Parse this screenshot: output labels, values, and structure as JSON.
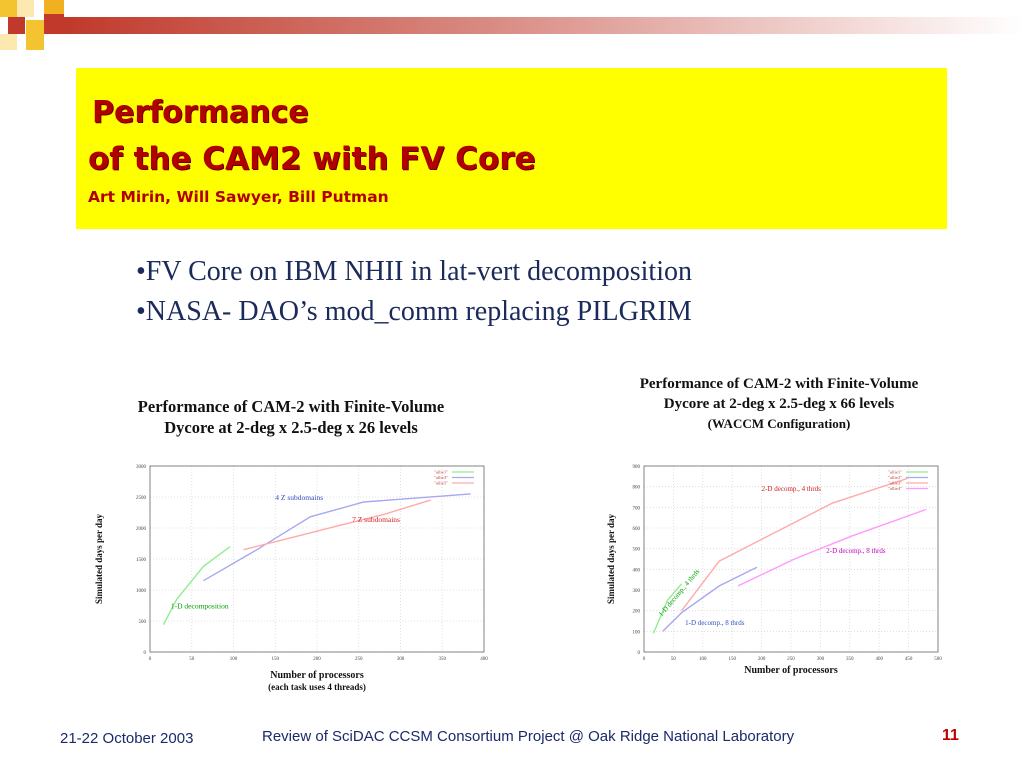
{
  "slide": {
    "title_line1": "Performance",
    "title_line2": "of the CAM2 with FV Core",
    "authors": "Art Mirin, Will Sawyer, Bill Putman",
    "bullets": [
      "•FV Core on IBM NHII in lat-vert decomposition",
      "•NASA- DAO’s mod_comm replacing PILGRIM"
    ],
    "footer": {
      "date": "21-22 October 2003",
      "center": "Review of SciDAC CCSM Consortium Project @ Oak Ridge National Laboratory",
      "page": "11"
    },
    "colors": {
      "title_box": "#ffff00",
      "title_text": "#b00000",
      "bullet_text": "#1a2a5a"
    }
  },
  "chart_data": [
    {
      "type": "line",
      "title_line1": "Performance of CAM-2 with Finite-Volume",
      "title_line2": "Dycore at 2-deg x 2.5-deg x 26 levels",
      "xlabel": "Number of processors",
      "xlabel_note": "(each task uses 4 threads)",
      "ylabel": "Simulated days per day",
      "xlim": [
        0,
        400
      ],
      "ylim": [
        0,
        3000
      ],
      "xticks": [
        0,
        50,
        100,
        150,
        200,
        250,
        300,
        350,
        400
      ],
      "yticks": [
        0,
        500,
        1000,
        1500,
        2000,
        2500,
        3000
      ],
      "grid": true,
      "legend_position": "top-right",
      "series": [
        {
          "name": "\"allie1\"",
          "color": "#90ee90",
          "x": [
            16,
            32,
            64,
            96
          ],
          "y": [
            440,
            850,
            1380,
            1700
          ]
        },
        {
          "name": "\"allie3\"",
          "color": "#a8a8f0",
          "x": [
            64,
            128,
            192,
            256,
            384
          ],
          "y": [
            1150,
            1650,
            2180,
            2420,
            2550
          ]
        },
        {
          "name": "\"allie5\"",
          "color": "#ffaaaa",
          "x": [
            112,
            168,
            224,
            280,
            336
          ],
          "y": [
            1650,
            1840,
            2030,
            2220,
            2450
          ]
        }
      ],
      "annotations": [
        {
          "text": "4 Z subdomains",
          "color": "#3050c0",
          "x": 150,
          "y": 2450
        },
        {
          "text": "7 Z subdomains",
          "color": "#d02020",
          "x": 242,
          "y": 2100
        },
        {
          "text": "1-D decomposition",
          "color": "#00a000",
          "x": 25,
          "y": 700
        }
      ]
    },
    {
      "type": "line",
      "title_line1": "Performance of CAM-2 with Finite-Volume",
      "title_line2": "Dycore at 2-deg x 2.5-deg x 66 levels",
      "subtitle": "(WACCM Configuration)",
      "xlabel": "Number of processors",
      "ylabel": "Simulated days per day",
      "xlim": [
        0,
        500
      ],
      "ylim": [
        0,
        900
      ],
      "xticks": [
        0,
        50,
        100,
        150,
        200,
        250,
        300,
        350,
        400,
        450,
        500
      ],
      "yticks": [
        0,
        100,
        200,
        300,
        400,
        500,
        600,
        700,
        800,
        900
      ],
      "grid": true,
      "legend_position": "top-right",
      "series": [
        {
          "name": "\"allie1\"",
          "color": "#90ee90",
          "x": [
            16,
            40,
            64
          ],
          "y": [
            90,
            250,
            330
          ]
        },
        {
          "name": "\"allie2\"",
          "color": "#a8a8f0",
          "x": [
            32,
            64,
            128,
            192
          ],
          "y": [
            100,
            190,
            320,
            410
          ]
        },
        {
          "name": "\"allie3\"",
          "color": "#ffaaaa",
          "x": [
            64,
            128,
            224,
            320,
            448
          ],
          "y": [
            200,
            440,
            580,
            720,
            840
          ]
        },
        {
          "name": "\"allie4\"",
          "color": "#ff99ff",
          "x": [
            160,
            256,
            352,
            480
          ],
          "y": [
            320,
            450,
            560,
            690
          ]
        }
      ],
      "annotations": [
        {
          "text": "2-D decomp., 4 thrds",
          "color": "#d02020",
          "x": 200,
          "y": 780
        },
        {
          "text": "2-D decomp., 8 thrds",
          "color": "#c000c0",
          "x": 310,
          "y": 480
        },
        {
          "text": "1-D decomp., 4 thrds",
          "color": "#00a000",
          "x": 30,
          "y": 170,
          "rotation": -50
        },
        {
          "text": "1-D decomp., 8 thrds",
          "color": "#3050c0",
          "x": 70,
          "y": 130
        }
      ]
    }
  ]
}
